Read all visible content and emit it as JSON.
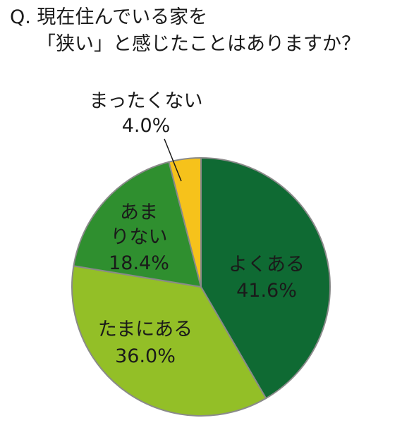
{
  "question": {
    "line1": "Q. 現在住んでいる家を",
    "line2": "「狭い」と感じたことはありますか？"
  },
  "chart_data": {
    "type": "pie",
    "categories": [
      "よくある",
      "たまにある",
      "あまりない",
      "まったくない"
    ],
    "values": [
      41.6,
      36.0,
      18.4,
      4.0
    ],
    "value_labels": [
      "41.6%",
      "36.0%",
      "18.4%",
      "4.0%"
    ],
    "colors": [
      "#0f6a33",
      "#93bf27",
      "#2f8f2f",
      "#f6c21b"
    ],
    "edge_color": "#8a8a8a",
    "start": "12 o'clock, clockwise",
    "legend": "none (labels on slices)"
  }
}
